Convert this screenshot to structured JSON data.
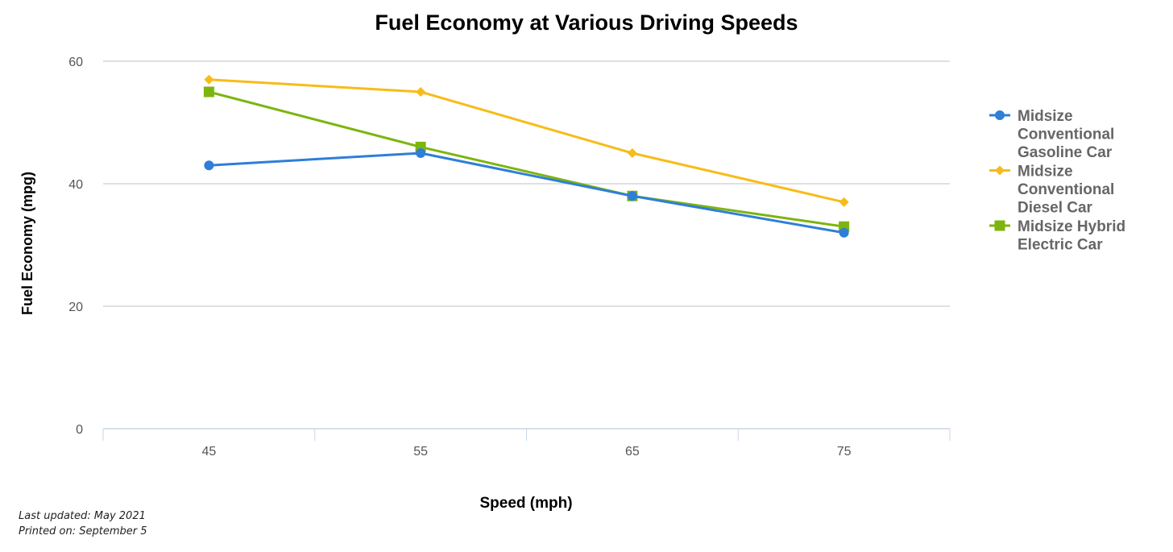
{
  "chart_data": {
    "type": "line",
    "title": "Fuel Economy at Various Driving Speeds",
    "xlabel": "Speed (mph)",
    "ylabel": "Fuel Economy (mpg)",
    "categories": [
      "45",
      "55",
      "65",
      "75"
    ],
    "ylim": [
      0,
      60
    ],
    "yticks": [
      0,
      20,
      40,
      60
    ],
    "grid": true,
    "legend_position": "right",
    "series": [
      {
        "name": "Midsize Conventional Gasoline Car",
        "legend_lines": [
          "Midsize",
          "Conventional",
          "Gasoline Car"
        ],
        "values": [
          43,
          45,
          38,
          32
        ],
        "color": "#2f7ed8",
        "marker": "circle"
      },
      {
        "name": "Midsize Conventional Diesel Car",
        "legend_lines": [
          "Midsize",
          "Conventional",
          "Diesel Car"
        ],
        "values": [
          57,
          55,
          45,
          37
        ],
        "color": "#f7bc1a",
        "marker": "diamond"
      },
      {
        "name": "Midsize Hybrid Electric Car",
        "legend_lines": [
          "Midsize Hybrid",
          "Electric Car"
        ],
        "values": [
          55,
          46,
          38,
          33
        ],
        "color": "#7cb50e",
        "marker": "square"
      }
    ]
  },
  "footer": {
    "last_updated": "Last updated: May 2021",
    "printed_on": "Printed on: September 5"
  }
}
